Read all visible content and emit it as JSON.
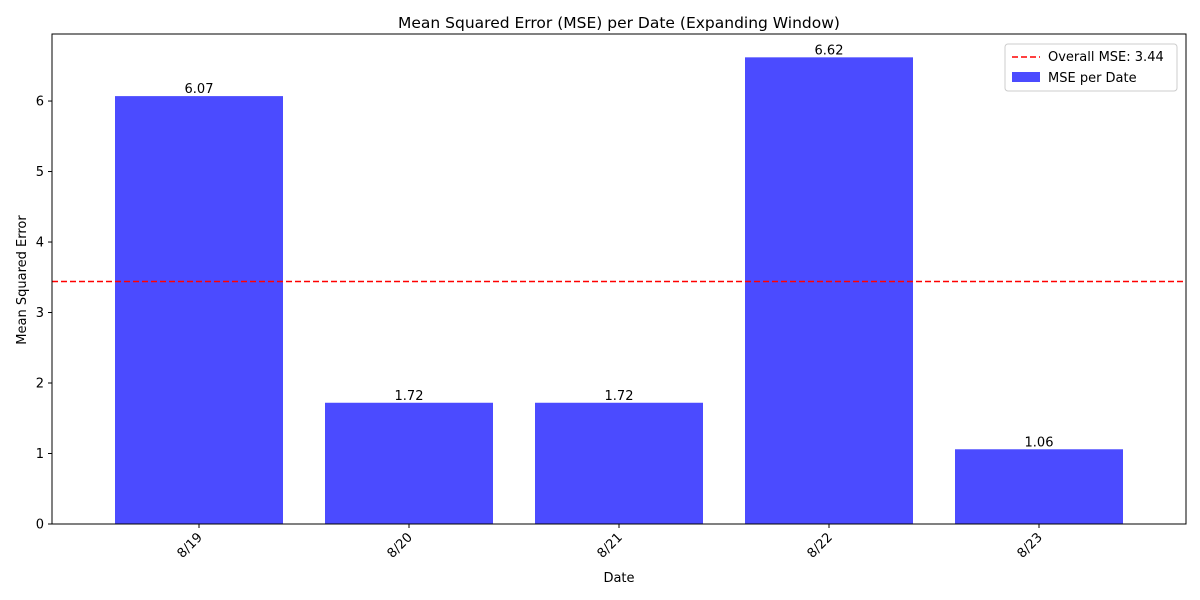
{
  "chart_data": {
    "type": "bar",
    "title": "Mean Squared Error (MSE) per Date (Expanding Window)",
    "xlabel": "Date",
    "ylabel": "Mean Squared Error",
    "categories": [
      "8/19",
      "8/20",
      "8/21",
      "8/22",
      "8/23"
    ],
    "series": [
      {
        "name": "MSE per Date",
        "values": [
          6.07,
          1.72,
          1.72,
          6.62,
          1.06
        ],
        "value_labels": [
          "6.07",
          "1.72",
          "1.72",
          "6.62",
          "1.06"
        ],
        "color": "#4b4bff"
      }
    ],
    "reference_line": {
      "name": "Overall MSE: 3.44",
      "value": 3.44,
      "color": "#ff0000",
      "style": "dashed"
    },
    "yticks": [
      0,
      1,
      2,
      3,
      4,
      5,
      6
    ],
    "ylim": [
      0,
      6.951
    ],
    "xtick_rotation": 45,
    "legend_position": "top-right",
    "grid": false
  }
}
